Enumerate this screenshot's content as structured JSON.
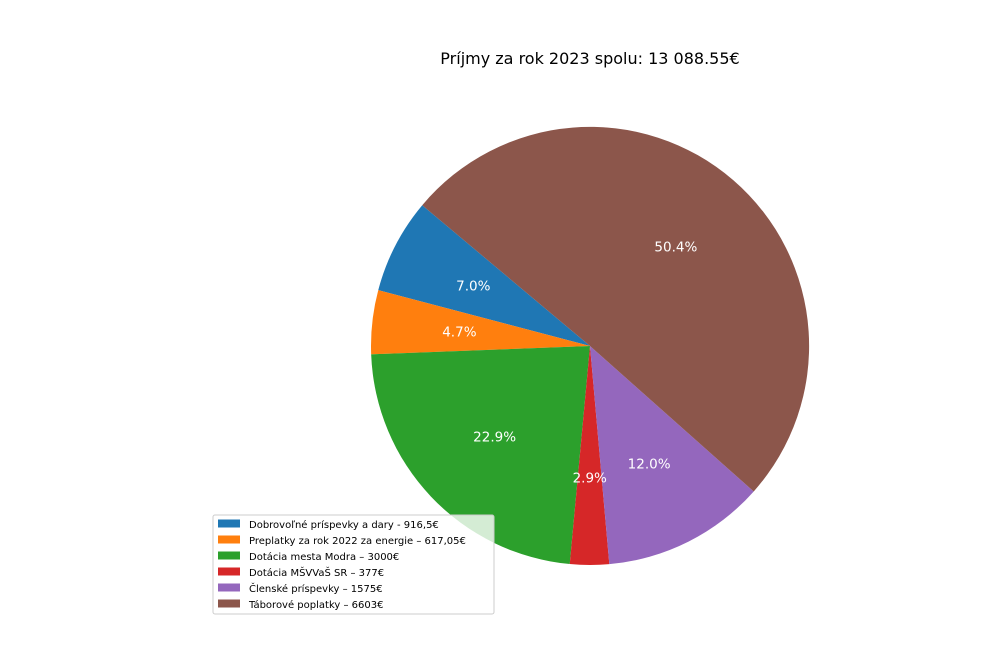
{
  "chart_data": {
    "type": "pie",
    "title": "Príjmy za rok 2023 spolu: 13 088.55€",
    "slices": [
      {
        "label": "Dobrovoľné príspevky a dary - 916,5€",
        "value": 916.5,
        "percent_label": "7.0%",
        "color": "#1f77b4"
      },
      {
        "label": "Preplatky za rok 2022 za energie – 617,05€",
        "value": 617.05,
        "percent_label": "4.7%",
        "color": "#ff7f0e"
      },
      {
        "label": "Dotácia mesta Modra – 3000€",
        "value": 3000,
        "percent_label": "22.9%",
        "color": "#2ca02c"
      },
      {
        "label": "Dotácia MŠVVaŠ SR – 377€",
        "value": 377,
        "percent_label": "2.9%",
        "color": "#d62728"
      },
      {
        "label": "Členské príspevky – 1575€",
        "value": 1575,
        "percent_label": "12.0%",
        "color": "#9467bd"
      },
      {
        "label": "Táborové poplatky – 6603€",
        "value": 6603,
        "percent_label": "50.4%",
        "color": "#8c564b"
      }
    ],
    "start_angle_deg": 140,
    "direction": "counterclockwise",
    "legend_position": "lower-left"
  }
}
